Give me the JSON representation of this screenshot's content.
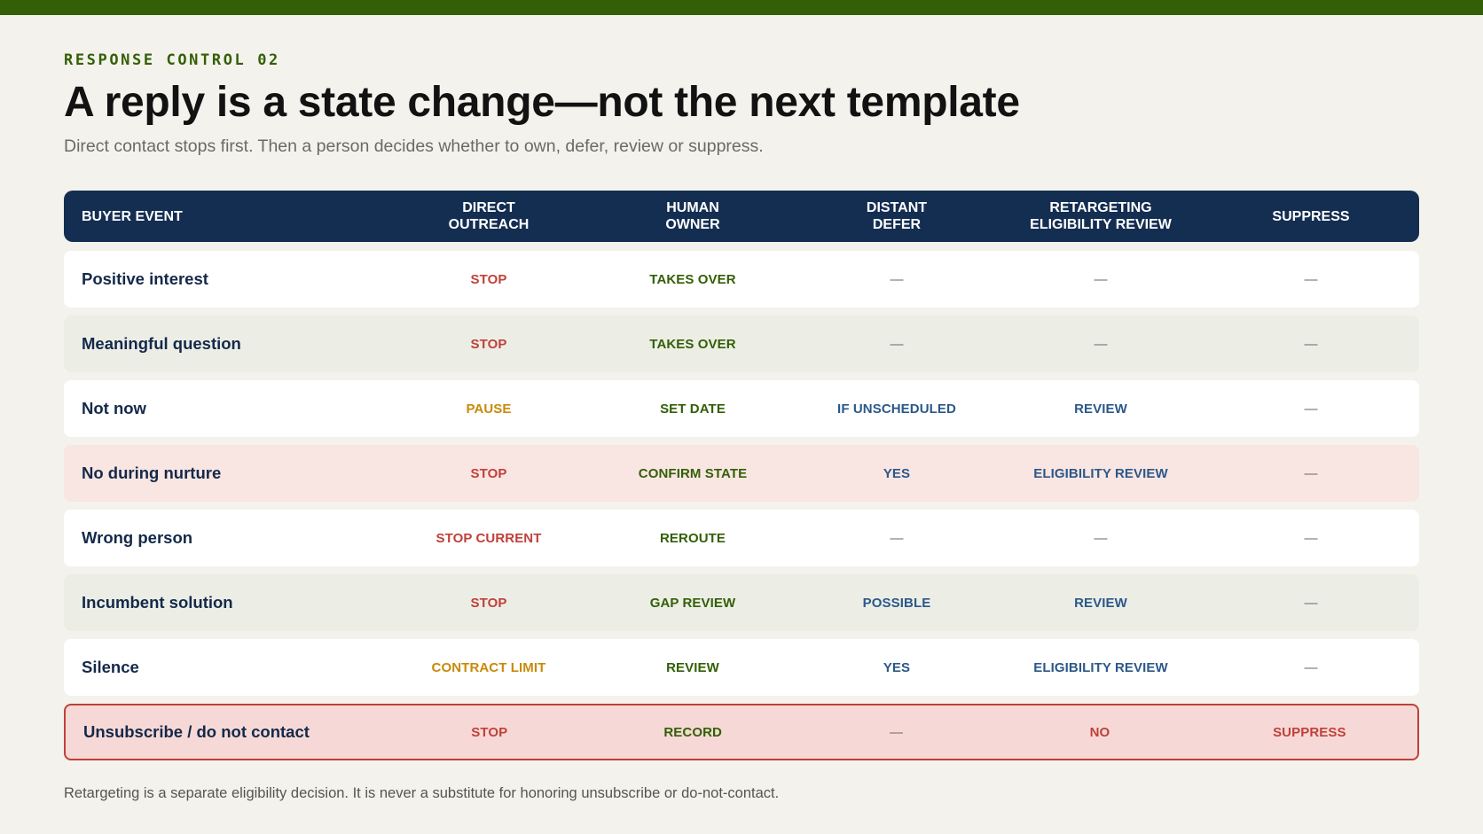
{
  "eyebrow": "RESPONSE CONTROL 02",
  "title": "A reply is a state change—not the next template",
  "subtitle": "Direct contact stops first. Then a person decides whether to own, defer, review or suppress.",
  "colors": {
    "accent_green": "#335f06",
    "header_navy": "#142e52",
    "stop_red": "#c0403a",
    "pause_amber": "#c88a0a",
    "review_blue": "#2c5889"
  },
  "table": {
    "headers": [
      "BUYER EVENT",
      "DIRECT\nOUTREACH",
      "HUMAN\nOWNER",
      "DISTANT\nDEFER",
      "RETARGETING\nELIGIBILITY REVIEW",
      "SUPPRESS"
    ],
    "rows": [
      {
        "event": "Positive interest",
        "style": "white",
        "cells": [
          {
            "text": "STOP",
            "tone": "red"
          },
          {
            "text": "TAKES OVER",
            "tone": "green"
          },
          {
            "text": "—",
            "tone": "dash"
          },
          {
            "text": "—",
            "tone": "dash"
          },
          {
            "text": "—",
            "tone": "dash"
          }
        ]
      },
      {
        "event": "Meaningful question",
        "style": "grey",
        "cells": [
          {
            "text": "STOP",
            "tone": "red"
          },
          {
            "text": "TAKES OVER",
            "tone": "green"
          },
          {
            "text": "—",
            "tone": "dash"
          },
          {
            "text": "—",
            "tone": "dash"
          },
          {
            "text": "—",
            "tone": "dash"
          }
        ]
      },
      {
        "event": "Not now",
        "style": "white",
        "cells": [
          {
            "text": "PAUSE",
            "tone": "amber"
          },
          {
            "text": "SET DATE",
            "tone": "green"
          },
          {
            "text": "IF UNSCHEDULED",
            "tone": "blue"
          },
          {
            "text": "REVIEW",
            "tone": "blue"
          },
          {
            "text": "—",
            "tone": "dash"
          }
        ]
      },
      {
        "event": "No during nurture",
        "style": "pink",
        "cells": [
          {
            "text": "STOP",
            "tone": "red"
          },
          {
            "text": "CONFIRM STATE",
            "tone": "green"
          },
          {
            "text": "YES",
            "tone": "blue"
          },
          {
            "text": "ELIGIBILITY REVIEW",
            "tone": "blue"
          },
          {
            "text": "—",
            "tone": "dash"
          }
        ]
      },
      {
        "event": "Wrong person",
        "style": "white",
        "cells": [
          {
            "text": "STOP CURRENT",
            "tone": "red"
          },
          {
            "text": "REROUTE",
            "tone": "green"
          },
          {
            "text": "—",
            "tone": "dash"
          },
          {
            "text": "—",
            "tone": "dash"
          },
          {
            "text": "—",
            "tone": "dash"
          }
        ]
      },
      {
        "event": "Incumbent solution",
        "style": "grey",
        "cells": [
          {
            "text": "STOP",
            "tone": "red"
          },
          {
            "text": "GAP REVIEW",
            "tone": "green"
          },
          {
            "text": "POSSIBLE",
            "tone": "blue"
          },
          {
            "text": "REVIEW",
            "tone": "blue"
          },
          {
            "text": "—",
            "tone": "dash"
          }
        ]
      },
      {
        "event": "Silence",
        "style": "white",
        "cells": [
          {
            "text": "CONTRACT LIMIT",
            "tone": "amber"
          },
          {
            "text": "REVIEW",
            "tone": "green"
          },
          {
            "text": "YES",
            "tone": "blue"
          },
          {
            "text": "ELIGIBILITY REVIEW",
            "tone": "blue"
          },
          {
            "text": "—",
            "tone": "dash"
          }
        ]
      },
      {
        "event": "Unsubscribe / do not contact",
        "style": "alert",
        "cells": [
          {
            "text": "STOP",
            "tone": "red"
          },
          {
            "text": "RECORD",
            "tone": "green"
          },
          {
            "text": "—",
            "tone": "dash"
          },
          {
            "text": "NO",
            "tone": "red"
          },
          {
            "text": "SUPPRESS",
            "tone": "red"
          }
        ]
      }
    ]
  },
  "footnote": "Retargeting is a separate eligibility decision. It is never a substitute for honoring unsubscribe or do-not-contact."
}
